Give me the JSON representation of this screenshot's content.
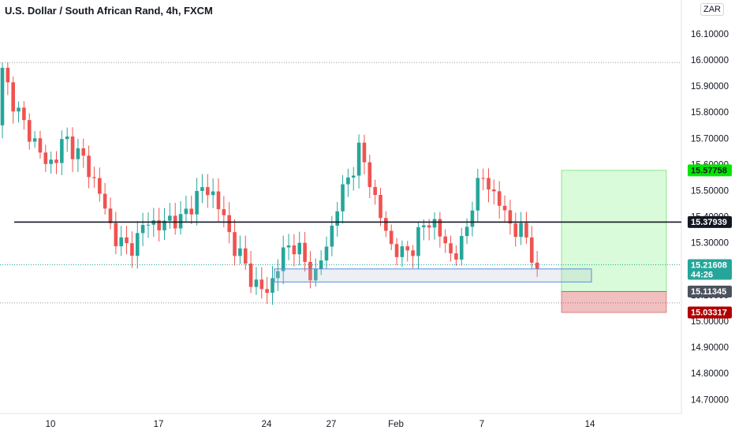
{
  "header": {
    "title": "U.S. Dollar / South African Rand, 4h, FXCM",
    "currency": "ZAR"
  },
  "colors": {
    "up": "#26a69a",
    "down": "#ef5350",
    "target": "#00e600",
    "stop": "#b20000",
    "current": "#26a69a",
    "entry": "#4c525e",
    "level": "#131722"
  },
  "chart_data": {
    "type": "candlestick",
    "title": "U.S. Dollar / South African Rand, 4h, FXCM",
    "ylim": [
      14.6,
      16.2
    ],
    "y_ticks": [
      16.1,
      16.0,
      15.9,
      15.8,
      15.7,
      15.6,
      15.5,
      15.4,
      15.3,
      15.2,
      15.1,
      15.0,
      14.9,
      14.8,
      14.7
    ],
    "y_tick_labels": [
      "16.10000",
      "16.00000",
      "15.90000",
      "15.80000",
      "15.70000",
      "15.60000",
      "15.50000",
      "15.40000",
      "15.30000",
      "15.20000",
      "15.10000",
      "15.00000",
      "14.90000",
      "14.80000",
      "14.70000"
    ],
    "x_tick_labels": [
      "10",
      "17",
      "24",
      "27",
      "Feb",
      "7",
      "14"
    ],
    "close_path": [
      15.95,
      15.85,
      15.75,
      15.7,
      15.6,
      15.62,
      15.7,
      15.65,
      15.6,
      15.52,
      15.4,
      15.3,
      15.28,
      15.32,
      15.4,
      15.35,
      15.4,
      15.38,
      15.45,
      15.5,
      15.5,
      15.4,
      15.3,
      15.22,
      15.15,
      15.1,
      15.18,
      15.28,
      15.3,
      15.2,
      15.18,
      15.3,
      15.45,
      15.55,
      15.65,
      15.55,
      15.4,
      15.3,
      15.25,
      15.28,
      15.35,
      15.4,
      15.3,
      15.25,
      15.3,
      15.5,
      15.55,
      15.48,
      15.4,
      15.35,
      15.32,
      15.2
    ],
    "levels": {
      "target": 15.57758,
      "current": 15.21608,
      "resistance": 15.37939,
      "entry": 15.11345,
      "stop": 15.03317,
      "hline_top": 15.99,
      "hline_bottom": 15.07
    },
    "zone": {
      "from": 15.15,
      "to": 15.2
    },
    "badges": [
      {
        "name": "target",
        "label": "15.57758"
      },
      {
        "name": "resistance",
        "label": "15.37939"
      },
      {
        "name": "current",
        "label": "15.21608",
        "sub": "44:26"
      },
      {
        "name": "entry",
        "label": "15.11345"
      },
      {
        "name": "stop",
        "label": "15.03317"
      }
    ]
  }
}
